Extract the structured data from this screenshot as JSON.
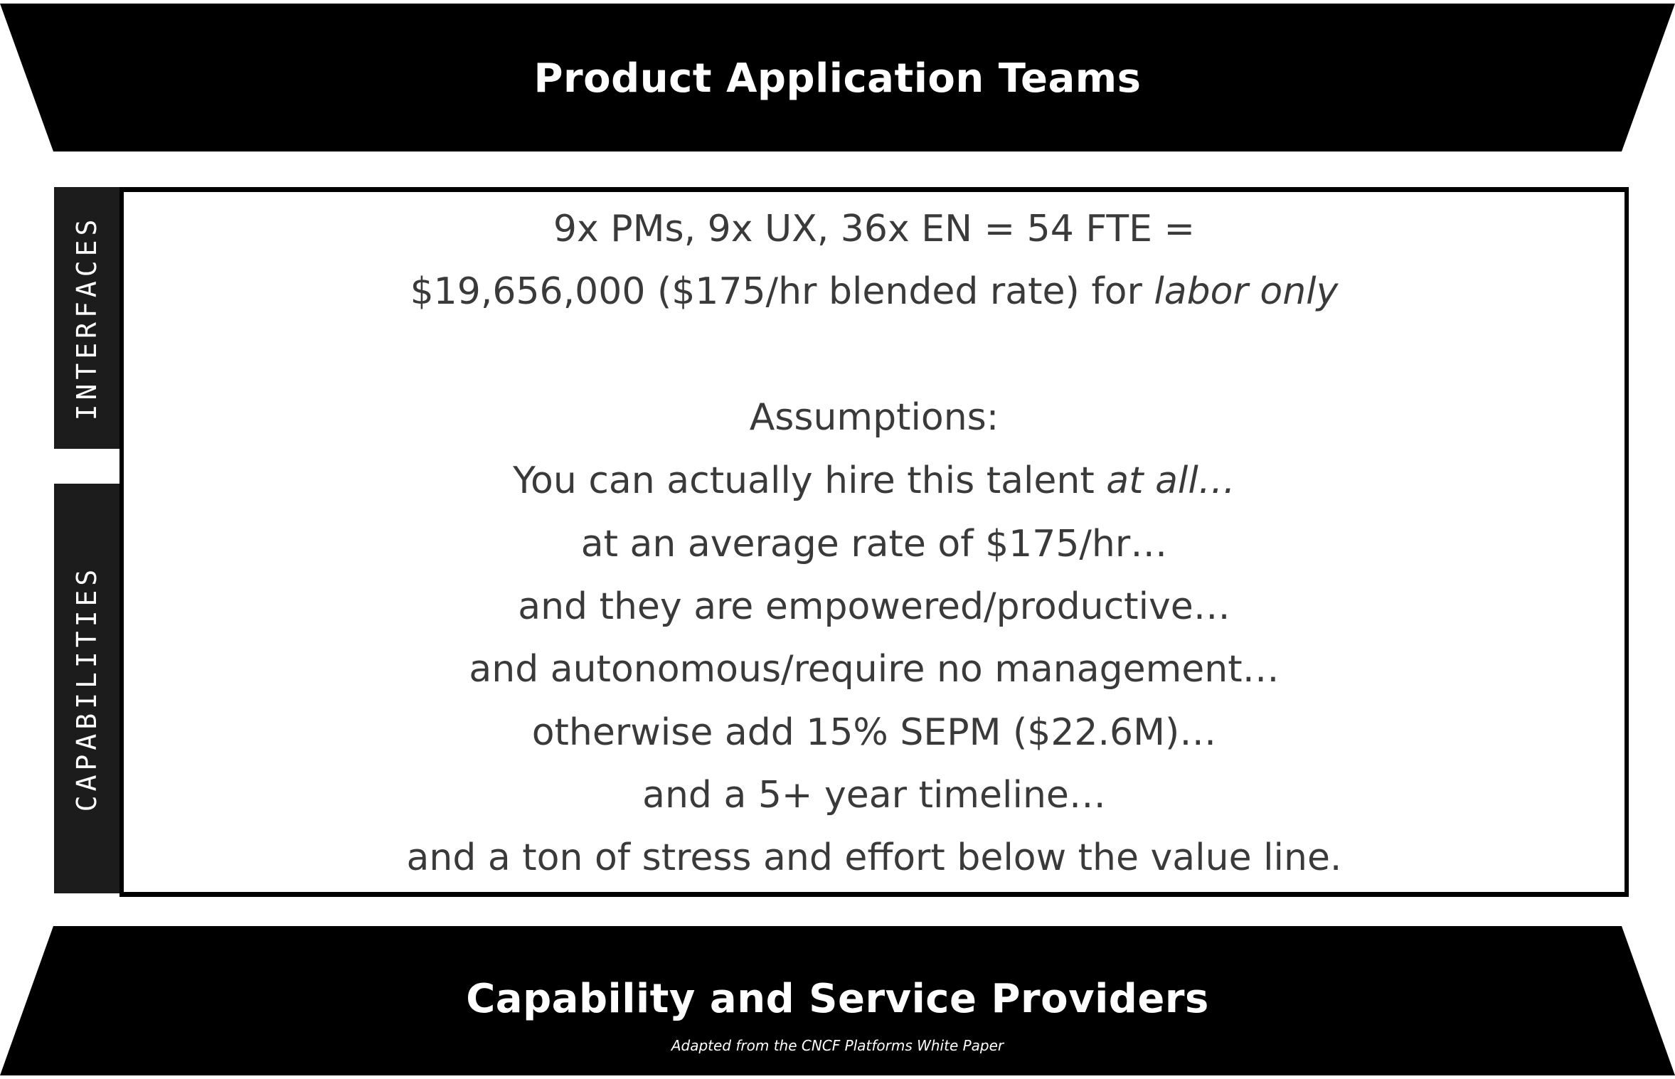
{
  "top_band": {
    "title": "Product Application Teams"
  },
  "bottom_band": {
    "title": "Capability and Service Providers",
    "credit": "Adapted from the CNCF Platforms White Paper"
  },
  "side_tabs": {
    "interfaces": "INTERFACES",
    "capabilities": "CAPABILITIES"
  },
  "content": {
    "line1": "9x PMs, 9x UX, 36x EN = 54 FTE =",
    "line2_main": "$19,656,000 ($175/hr blended rate) for ",
    "line2_italic": "labor only",
    "assumptions_heading": "Assumptions:",
    "line4_main": "You can actually hire this talent ",
    "line4_italic": "at all…",
    "line5": "at an average rate of $175/hr…",
    "line6": "and they are empowered/productive…",
    "line7": "and autonomous/require no management…",
    "line8": "otherwise add 15% SEPM ($22.6M)…",
    "line9": "and a 5+ year timeline…",
    "line10": "and a ton of stress and effort below the value line."
  },
  "colors": {
    "band": "#000000",
    "tab": "#1c1c1c",
    "text": "#3a3a3a",
    "background": "#ffffff"
  }
}
